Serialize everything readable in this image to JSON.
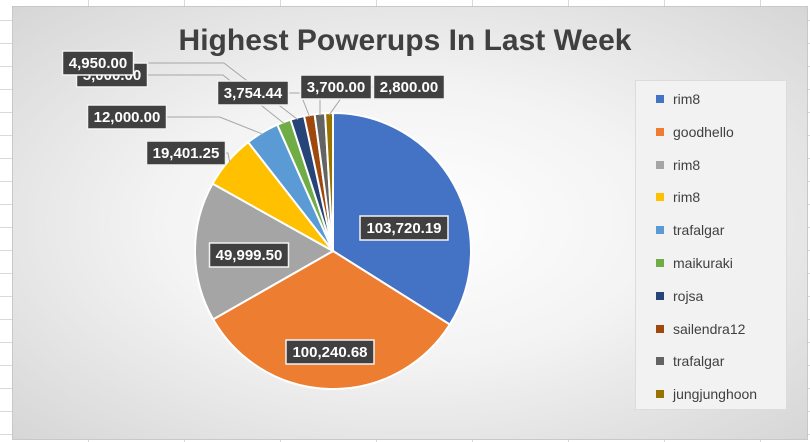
{
  "chart_data": {
    "type": "pie",
    "title": "Highest Powerups In Last Week",
    "slices": [
      {
        "name": "rim8",
        "value": 103720.19,
        "label": "103,720.19",
        "color": "#4472c4"
      },
      {
        "name": "goodhello",
        "value": 100240.68,
        "label": "100,240.68",
        "color": "#ed7d31"
      },
      {
        "name": "rim8",
        "value": 49999.5,
        "label": "49,999.50",
        "color": "#a5a5a5"
      },
      {
        "name": "rim8",
        "value": 19401.25,
        "label": "19,401.25",
        "color": "#ffc000"
      },
      {
        "name": "trafalgar",
        "value": 12000.0,
        "label": "12,000.00",
        "color": "#5b9bd5"
      },
      {
        "name": "maikuraki",
        "value": 5000.0,
        "label": "5,000.00",
        "color": "#70ad47"
      },
      {
        "name": "rojsa",
        "value": 4950.0,
        "label": "4,950.00",
        "color": "#264478"
      },
      {
        "name": "sailendra12",
        "value": 3754.44,
        "label": "3,754.44",
        "color": "#9e480e"
      },
      {
        "name": "trafalgar",
        "value": 3700.0,
        "label": "3,700.00",
        "color": "#636363"
      },
      {
        "name": "jungjunghoon",
        "value": 2800.0,
        "label": "2,800.00",
        "color": "#997300"
      }
    ],
    "legend_position": "right"
  }
}
